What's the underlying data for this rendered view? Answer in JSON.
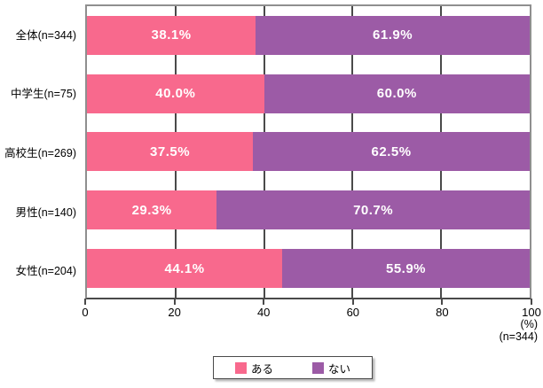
{
  "chart_data": {
    "type": "bar",
    "variant": "horizontal-stacked",
    "title": "",
    "categories": [
      "全体(n=344)",
      "中学生(n=75)",
      "高校生(n=269)",
      "男性(n=140)",
      "女性(n=204)"
    ],
    "series": [
      {
        "name": "ある",
        "color": "#f8698d",
        "values": [
          38.1,
          40.0,
          37.5,
          29.3,
          44.1
        ]
      },
      {
        "name": "ない",
        "color": "#9c5ba6",
        "values": [
          61.9,
          60.0,
          62.5,
          70.7,
          55.9
        ]
      }
    ],
    "value_label_format": "percent_one_decimal",
    "xlim": [
      0,
      100
    ],
    "x_ticks": [
      0,
      20,
      40,
      60,
      80,
      100
    ],
    "grid": true,
    "axis_unit": "(%)",
    "axis_note": "(n=344)",
    "legend": {
      "position": "bottom",
      "items": [
        {
          "label": "ある",
          "color": "#f8698d"
        },
        {
          "label": "ない",
          "color": "#9c5ba6"
        }
      ]
    }
  }
}
